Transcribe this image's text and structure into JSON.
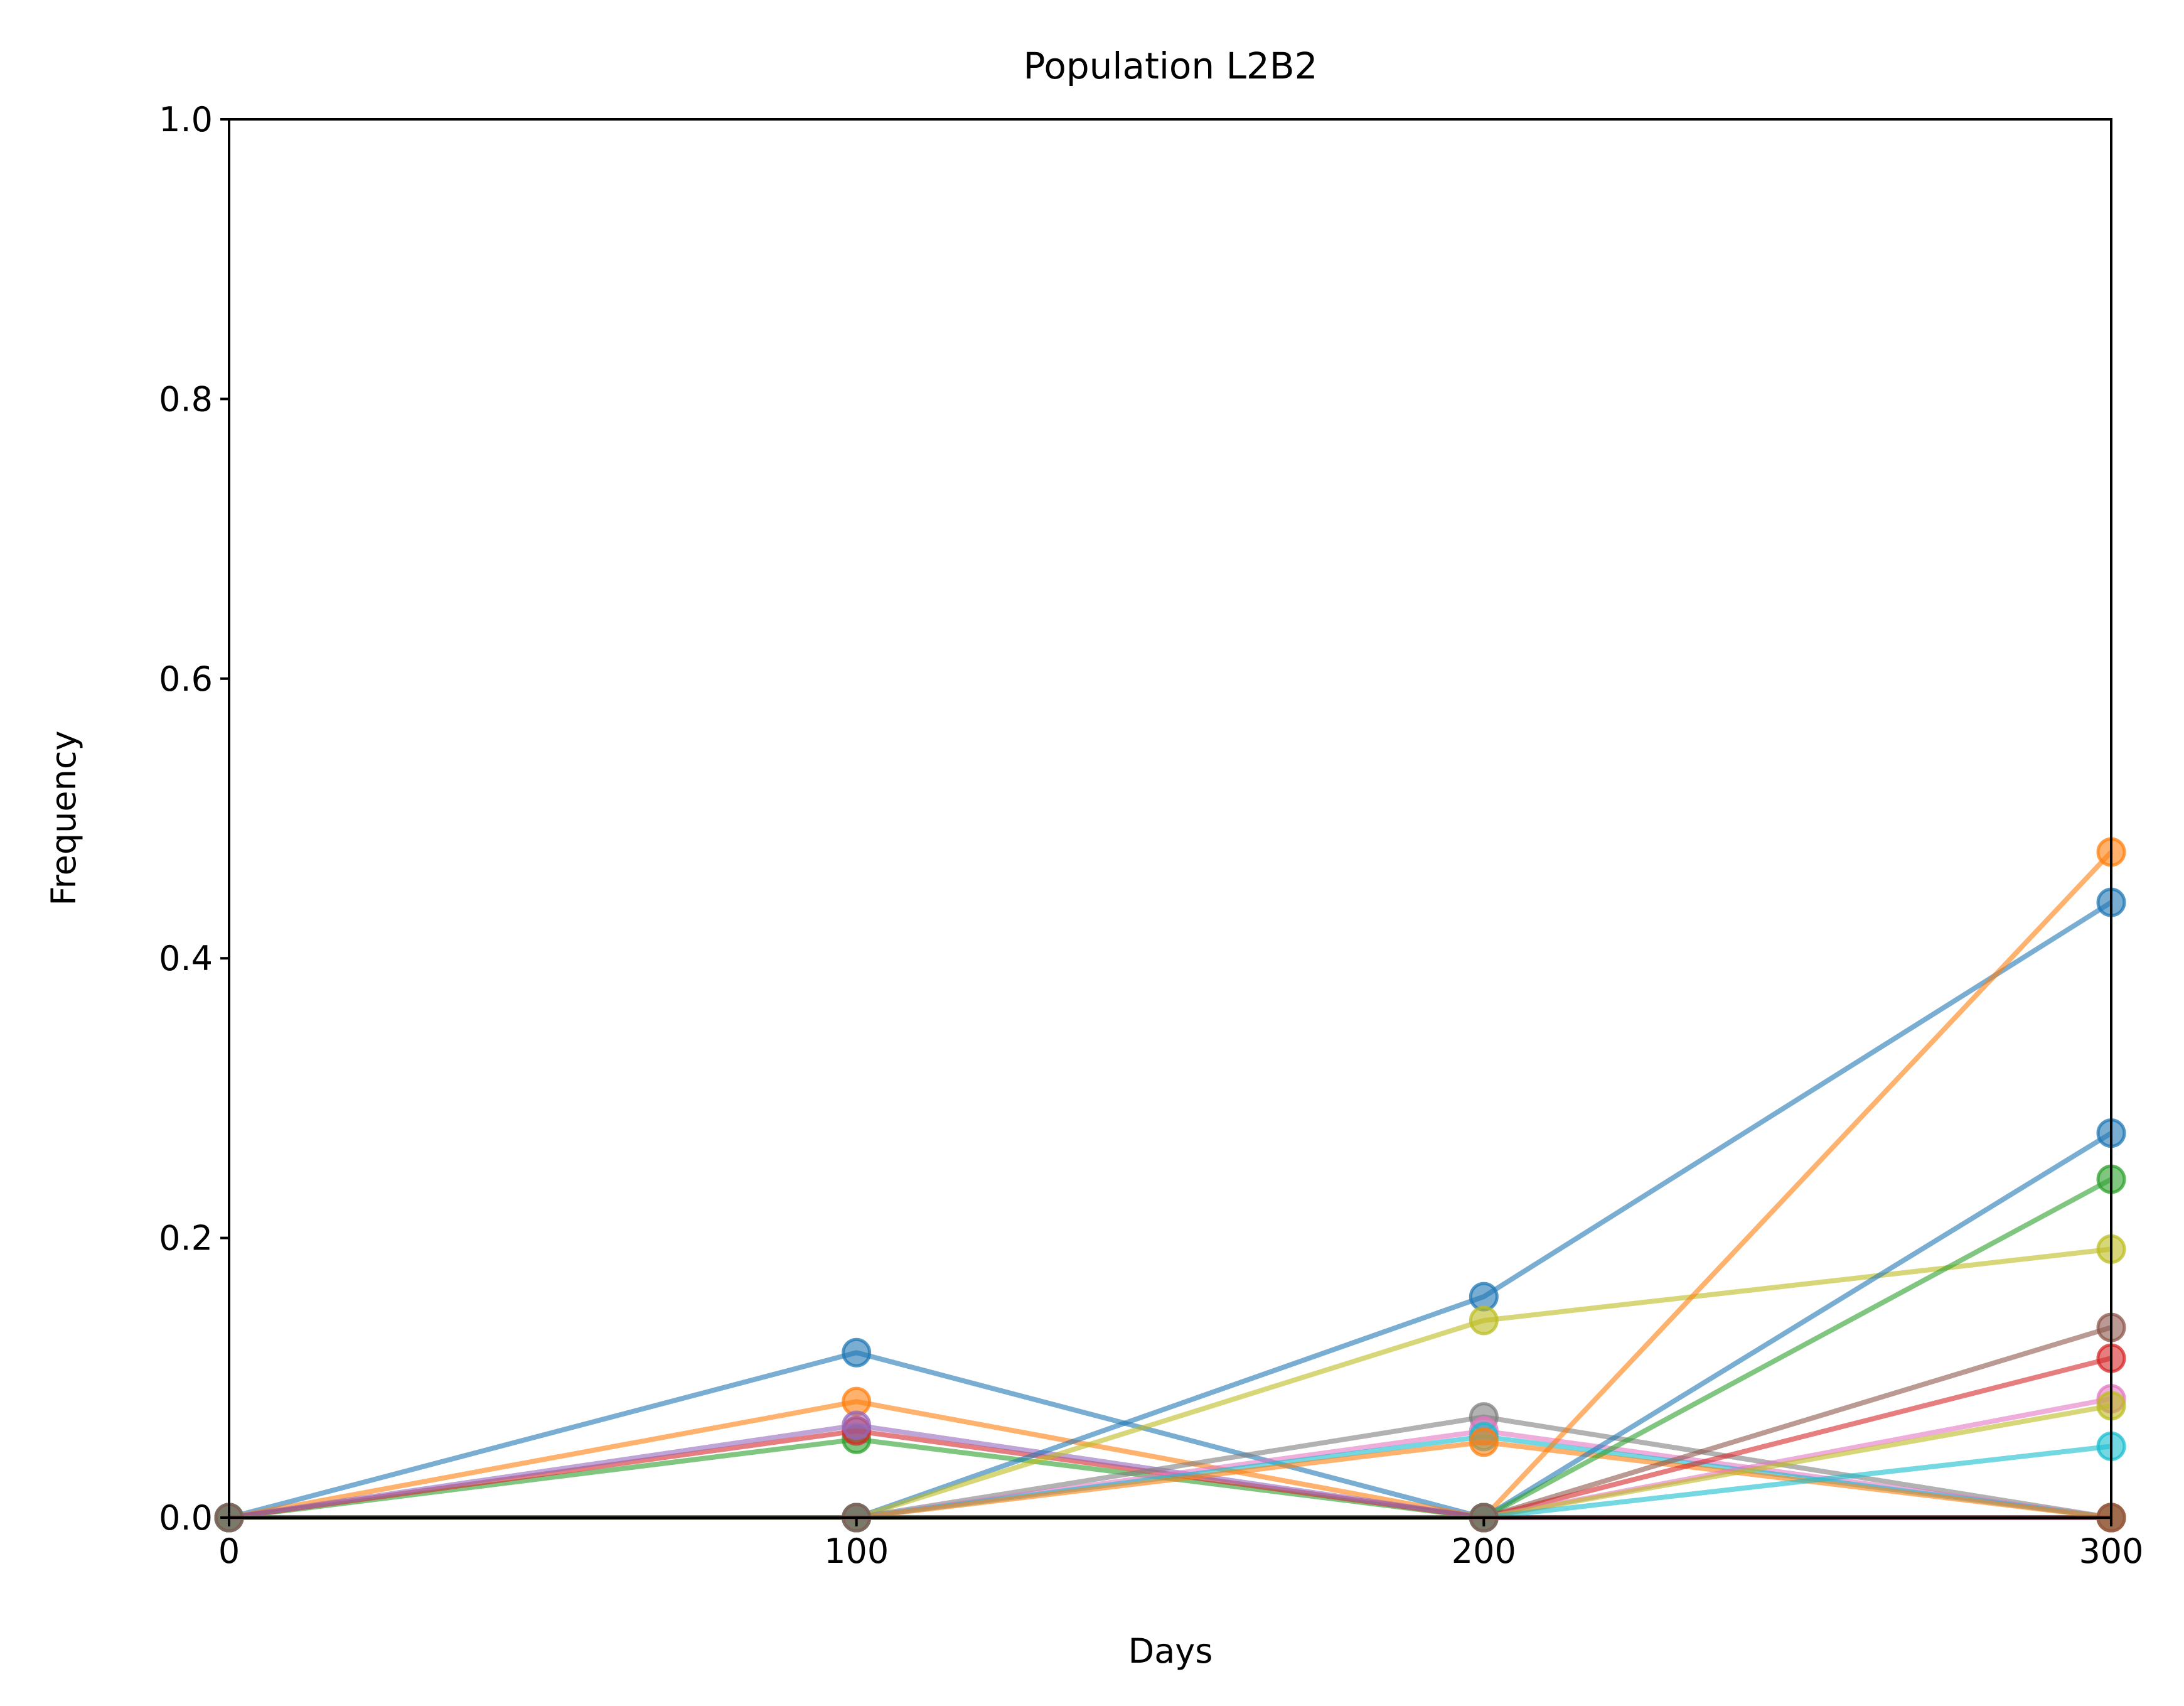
{
  "chart_data": {
    "type": "line",
    "title": "Population L2B2",
    "xlabel": "Days",
    "ylabel": "Frequency",
    "xlim": [
      0,
      300
    ],
    "ylim": [
      0,
      1
    ],
    "x_ticks": [
      "0",
      "100",
      "200",
      "300"
    ],
    "y_ticks": [
      "0.0",
      "0.2",
      "0.4",
      "0.6",
      "0.8",
      "1.0"
    ],
    "grid": false,
    "legend": "none",
    "x": [
      0,
      100,
      200,
      300
    ],
    "series": [
      {
        "color": "#1f77b4",
        "values": [
          0,
          0.118,
          0,
          0
        ]
      },
      {
        "color": "#ff7f0e",
        "values": [
          0,
          0.083,
          0,
          0
        ]
      },
      {
        "color": "#2ca02c",
        "values": [
          0,
          0.056,
          0,
          0
        ]
      },
      {
        "color": "#d62728",
        "values": [
          0,
          0.062,
          0,
          0
        ]
      },
      {
        "color": "#9467bd",
        "values": [
          0,
          0.066,
          0,
          0
        ]
      },
      {
        "color": "#1f77b4",
        "values": [
          0,
          0,
          0.158,
          0.44
        ]
      },
      {
        "color": "#bcbd22",
        "values": [
          0,
          0,
          0.141,
          0.192
        ]
      },
      {
        "color": "#7f7f7f",
        "values": [
          0,
          0,
          0.072,
          0
        ]
      },
      {
        "color": "#e377c2",
        "values": [
          0,
          0,
          0.062,
          0
        ]
      },
      {
        "color": "#17becf",
        "values": [
          0,
          0,
          0.058,
          0
        ]
      },
      {
        "color": "#ff7f0e",
        "values": [
          0,
          0,
          0.054,
          0
        ]
      },
      {
        "color": "#ff7f0e",
        "values": [
          0,
          0,
          0,
          0.476
        ]
      },
      {
        "color": "#1f77b4",
        "values": [
          0,
          0,
          0,
          0.275
        ]
      },
      {
        "color": "#2ca02c",
        "values": [
          0,
          0,
          0,
          0.242
        ]
      },
      {
        "color": "#8c564b",
        "values": [
          0,
          0,
          0,
          0.136
        ]
      },
      {
        "color": "#d62728",
        "values": [
          0,
          0,
          0,
          0.114
        ]
      },
      {
        "color": "#e377c2",
        "values": [
          0,
          0,
          0,
          0.085
        ]
      },
      {
        "color": "#bcbd22",
        "values": [
          0,
          0,
          0,
          0.08
        ]
      },
      {
        "color": "#17becf",
        "values": [
          0,
          0,
          0,
          0.051
        ]
      },
      {
        "color": "#8c564b",
        "values": [
          0,
          0,
          0,
          0
        ]
      }
    ]
  }
}
